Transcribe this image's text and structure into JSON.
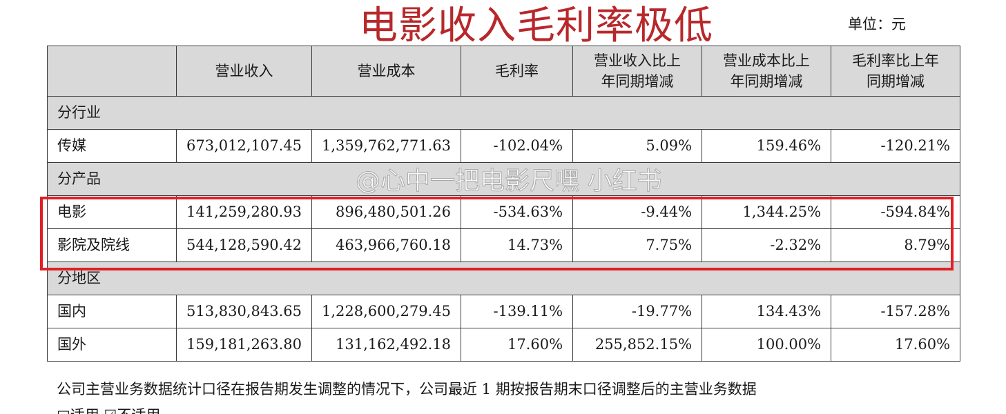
{
  "headline": "电影收入毛利率极低",
  "unit_label": "单位：元",
  "watermark": "@心中一把电影尺嘿 小红书",
  "colors": {
    "headline": "#b8282b",
    "highlight_border": "#e21f26",
    "header_bg": "#d9d9d9"
  },
  "table": {
    "columns": [
      "",
      "营业收入",
      "营业成本",
      "毛利率",
      "营业收入比上\n年同期增减",
      "营业成本比上\n年同期增减",
      "毛利率比上年\n同期增减"
    ],
    "rows": [
      {
        "type": "section",
        "label": "分行业"
      },
      {
        "type": "data",
        "cells": [
          "传媒",
          "673,012,107.45",
          "1,359,762,771.63",
          "-102.04%",
          "5.09%",
          "159.46%",
          "-120.21%"
        ]
      },
      {
        "type": "section",
        "label": "分产品"
      },
      {
        "type": "data",
        "cells": [
          "电影",
          "141,259,280.93",
          "896,480,501.26",
          "-534.63%",
          "-9.44%",
          "1,344.25%",
          "-594.84%"
        ]
      },
      {
        "type": "data",
        "cells": [
          "影院及院线",
          "544,128,590.42",
          "463,966,760.18",
          "14.73%",
          "7.75%",
          "-2.32%",
          "8.79%"
        ]
      },
      {
        "type": "section",
        "label": "分地区"
      },
      {
        "type": "data",
        "cells": [
          "国内",
          "513,830,843.65",
          "1,228,600,279.45",
          "-139.11%",
          "-19.77%",
          "134.43%",
          "-157.28%"
        ]
      },
      {
        "type": "data",
        "cells": [
          "国外",
          "159,181,263.80",
          "131,162,492.18",
          "17.60%",
          "255,852.15%",
          "100.00%",
          "17.60%"
        ]
      }
    ]
  },
  "footnote": "公司主营业务数据统计口径在报告期发生调整的情况下，公司最近 1 期按报告期末口径调整后的主营业务数据",
  "footnote2": "□适用 ☑不适用"
}
